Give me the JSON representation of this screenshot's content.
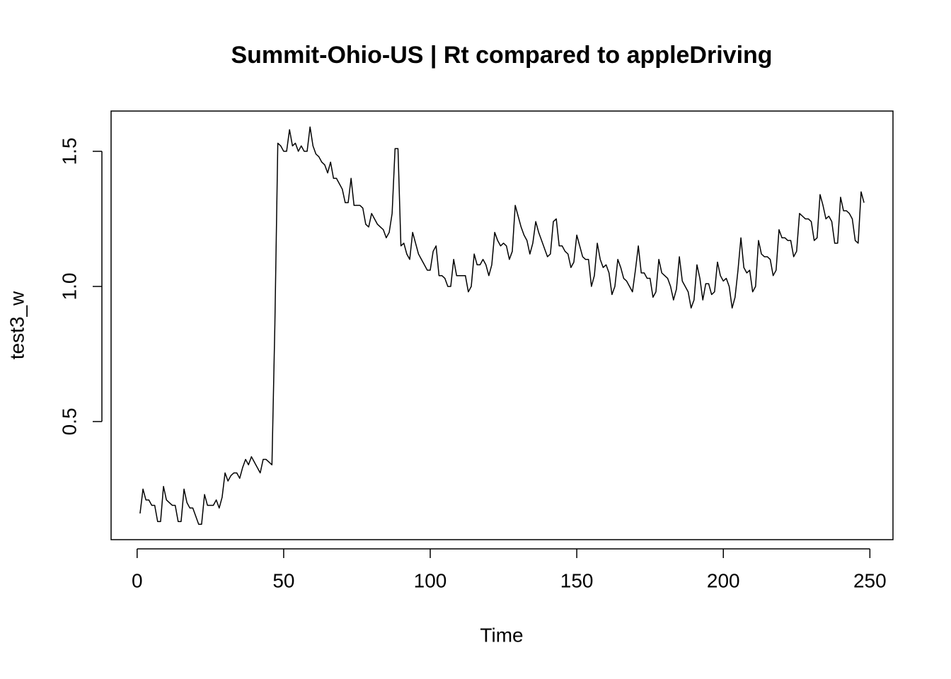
{
  "chart_data": {
    "type": "line",
    "title": "Summit-Ohio-US | Rt compared to appleDriving",
    "xlabel": "Time",
    "ylabel": "test3_w",
    "color": "#000000",
    "xlim": [
      -8.88,
      257.88
    ],
    "ylim": [
      0.063,
      1.649
    ],
    "xticks": [
      0,
      50,
      100,
      150,
      200,
      250
    ],
    "yticks": [
      0.5,
      {
        "value": 1,
        "label": "1.0"
      },
      1.5
    ],
    "x": [
      1,
      2,
      3,
      4,
      5,
      6,
      7,
      8,
      9,
      10,
      11,
      12,
      13,
      14,
      15,
      16,
      17,
      18,
      19,
      20,
      21,
      22,
      23,
      24,
      25,
      26,
      27,
      28,
      29,
      30,
      31,
      32,
      33,
      34,
      35,
      36,
      37,
      38,
      39,
      40,
      41,
      42,
      43,
      44,
      45,
      46,
      47,
      48,
      49,
      50,
      51,
      52,
      53,
      54,
      55,
      56,
      57,
      58,
      59,
      60,
      61,
      62,
      63,
      64,
      65,
      66,
      67,
      68,
      69,
      70,
      71,
      72,
      73,
      74,
      75,
      76,
      77,
      78,
      79,
      80,
      81,
      82,
      83,
      84,
      85,
      86,
      87,
      88,
      89,
      90,
      91,
      92,
      93,
      94,
      95,
      96,
      97,
      98,
      99,
      100,
      101,
      102,
      103,
      104,
      105,
      106,
      107,
      108,
      109,
      110,
      111,
      112,
      113,
      114,
      115,
      116,
      117,
      118,
      119,
      120,
      121,
      122,
      123,
      124,
      125,
      126,
      127,
      128,
      129,
      130,
      131,
      132,
      133,
      134,
      135,
      136,
      137,
      138,
      139,
      140,
      141,
      142,
      143,
      144,
      145,
      146,
      147,
      148,
      149,
      150,
      151,
      152,
      153,
      154,
      155,
      156,
      157,
      158,
      159,
      160,
      161,
      162,
      163,
      164,
      165,
      166,
      167,
      168,
      169,
      170,
      171,
      172,
      173,
      174,
      175,
      176,
      177,
      178,
      179,
      180,
      181,
      182,
      183,
      184,
      185,
      186,
      187,
      188,
      189,
      190,
      191,
      192,
      193,
      194,
      195,
      196,
      197,
      198,
      199,
      200,
      201,
      202,
      203,
      204,
      205,
      206,
      207,
      208,
      209,
      210,
      211,
      212,
      213,
      214,
      215,
      216,
      217,
      218,
      219,
      220,
      221,
      222,
      223,
      224,
      225,
      226,
      227,
      228,
      229,
      230,
      231,
      232,
      233,
      234,
      235,
      236,
      237,
      238,
      239,
      240,
      241,
      242,
      243,
      244,
      245,
      246,
      247,
      248
    ],
    "values": [
      0.16,
      0.25,
      0.21,
      0.21,
      0.19,
      0.19,
      0.13,
      0.13,
      0.26,
      0.21,
      0.2,
      0.19,
      0.19,
      0.13,
      0.13,
      0.25,
      0.2,
      0.18,
      0.18,
      0.15,
      0.12,
      0.12,
      0.23,
      0.19,
      0.19,
      0.19,
      0.21,
      0.18,
      0.22,
      0.31,
      0.28,
      0.3,
      0.31,
      0.31,
      0.29,
      0.33,
      0.36,
      0.34,
      0.37,
      0.35,
      0.33,
      0.31,
      0.36,
      0.36,
      0.35,
      0.34,
      0.86,
      1.53,
      1.52,
      1.5,
      1.5,
      1.58,
      1.52,
      1.53,
      1.5,
      1.52,
      1.5,
      1.5,
      1.59,
      1.52,
      1.49,
      1.48,
      1.46,
      1.45,
      1.42,
      1.46,
      1.4,
      1.4,
      1.38,
      1.36,
      1.31,
      1.31,
      1.4,
      1.3,
      1.3,
      1.3,
      1.29,
      1.23,
      1.22,
      1.27,
      1.25,
      1.23,
      1.22,
      1.21,
      1.18,
      1.2,
      1.27,
      1.51,
      1.51,
      1.15,
      1.16,
      1.12,
      1.1,
      1.2,
      1.16,
      1.12,
      1.1,
      1.08,
      1.06,
      1.06,
      1.13,
      1.15,
      1.04,
      1.04,
      1.03,
      1.0,
      1.0,
      1.1,
      1.04,
      1.04,
      1.04,
      1.04,
      0.98,
      1.0,
      1.12,
      1.08,
      1.08,
      1.1,
      1.08,
      1.04,
      1.08,
      1.2,
      1.17,
      1.15,
      1.16,
      1.15,
      1.1,
      1.13,
      1.3,
      1.26,
      1.22,
      1.19,
      1.17,
      1.12,
      1.16,
      1.24,
      1.2,
      1.17,
      1.14,
      1.11,
      1.12,
      1.24,
      1.25,
      1.15,
      1.15,
      1.13,
      1.12,
      1.07,
      1.09,
      1.19,
      1.15,
      1.11,
      1.1,
      1.1,
      1.0,
      1.04,
      1.16,
      1.1,
      1.07,
      1.08,
      1.05,
      0.97,
      1.0,
      1.1,
      1.07,
      1.03,
      1.02,
      1.0,
      0.98,
      1.06,
      1.15,
      1.05,
      1.05,
      1.03,
      1.03,
      0.96,
      0.98,
      1.1,
      1.05,
      1.04,
      1.03,
      1.0,
      0.95,
      0.99,
      1.11,
      1.02,
      1.0,
      0.98,
      0.92,
      0.95,
      1.08,
      1.03,
      0.95,
      1.01,
      1.01,
      0.97,
      0.98,
      1.09,
      1.04,
      1.02,
      1.03,
      1.0,
      0.92,
      0.96,
      1.06,
      1.18,
      1.07,
      1.05,
      1.06,
      0.98,
      1.0,
      1.17,
      1.12,
      1.11,
      1.11,
      1.1,
      1.04,
      1.06,
      1.21,
      1.18,
      1.18,
      1.17,
      1.17,
      1.11,
      1.13,
      1.27,
      1.26,
      1.25,
      1.25,
      1.24,
      1.17,
      1.18,
      1.34,
      1.3,
      1.25,
      1.26,
      1.24,
      1.16,
      1.16,
      1.33,
      1.28,
      1.28,
      1.27,
      1.25,
      1.17,
      1.16,
      1.35,
      1.31
    ]
  }
}
